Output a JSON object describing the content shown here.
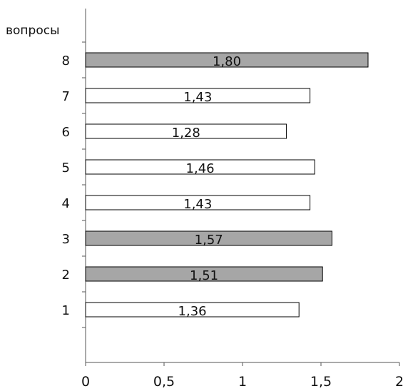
{
  "chart_data": {
    "type": "bar",
    "orientation": "horizontal",
    "ylabel": "вопросы",
    "xlabel": "",
    "title": "",
    "categories": [
      "1",
      "2",
      "3",
      "4",
      "5",
      "6",
      "7",
      "8"
    ],
    "values": [
      1.36,
      1.51,
      1.57,
      1.43,
      1.46,
      1.28,
      1.43,
      1.8
    ],
    "value_labels": [
      "1,36",
      "1,51",
      "1,57",
      "1,43",
      "1,46",
      "1,28",
      "1,43",
      "1,80"
    ],
    "highlighted": [
      false,
      true,
      true,
      false,
      false,
      false,
      false,
      true
    ],
    "xlim": [
      0,
      2
    ],
    "xticks": [
      0,
      0.5,
      1,
      1.5,
      2
    ],
    "xtick_labels": [
      "0",
      "0,5",
      "1",
      "1,5",
      "2"
    ],
    "grid": false,
    "legend": "none",
    "colors": {
      "highlight": "#a6a6a6",
      "normal": "#ffffff",
      "stroke": "#000000",
      "axis": "#555555"
    }
  }
}
